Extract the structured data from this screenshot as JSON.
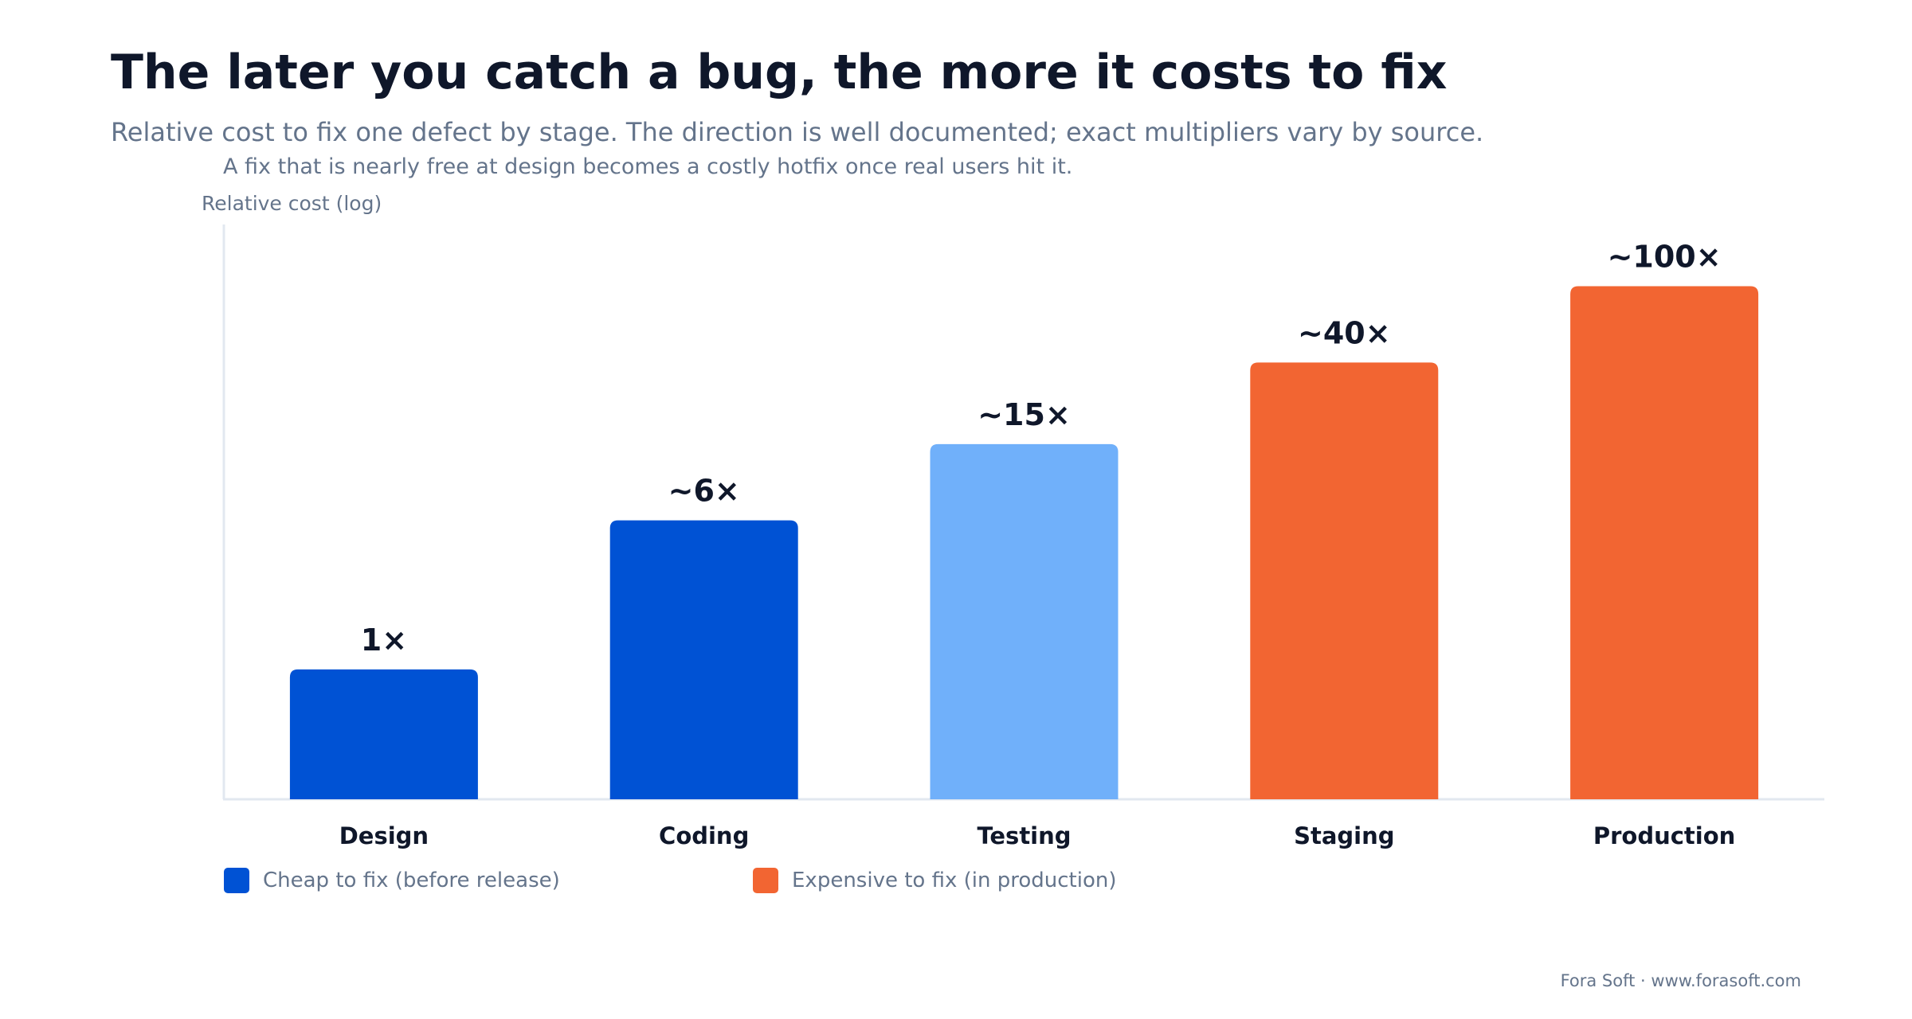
{
  "title": "The later you catch a bug, the more it costs to fix",
  "subtitle": "Relative cost to fix one defect by stage. The direction is well documented; exact multipliers vary by source.",
  "caption": "A fix that is nearly free at design becomes a costly hotfix once real users hit it.",
  "footer": "Fora Soft · www.forasoft.com",
  "colors": {
    "cheap": "#0052d4",
    "testing": "#70b0fa",
    "expensive": "#f26532",
    "text_dark": "#0f172a",
    "text_muted": "#64748b",
    "axis": "#e2e8f0"
  },
  "legend": [
    {
      "label": "Cheap to fix (before release)",
      "color": "#0052d4"
    },
    {
      "label": "Expensive to fix (in production)",
      "color": "#f26532"
    }
  ],
  "chart_data": {
    "type": "bar",
    "title": "The later you catch a bug, the more it costs to fix",
    "ylabel": "Relative cost (log)",
    "xlabel": "",
    "yscale": "log",
    "ylim": [
      0.21,
      210
    ],
    "grid": false,
    "legend_position": "bottom-left",
    "categories": [
      "Design",
      "Coding",
      "Testing",
      "Staging",
      "Production"
    ],
    "values": [
      1,
      6,
      15,
      40,
      100
    ],
    "labels": [
      "1×",
      "~6×",
      "~15×",
      "~40×",
      "~100×"
    ],
    "colors": [
      "#0052d4",
      "#0052d4",
      "#70b0fa",
      "#f26532",
      "#f26532"
    ]
  }
}
